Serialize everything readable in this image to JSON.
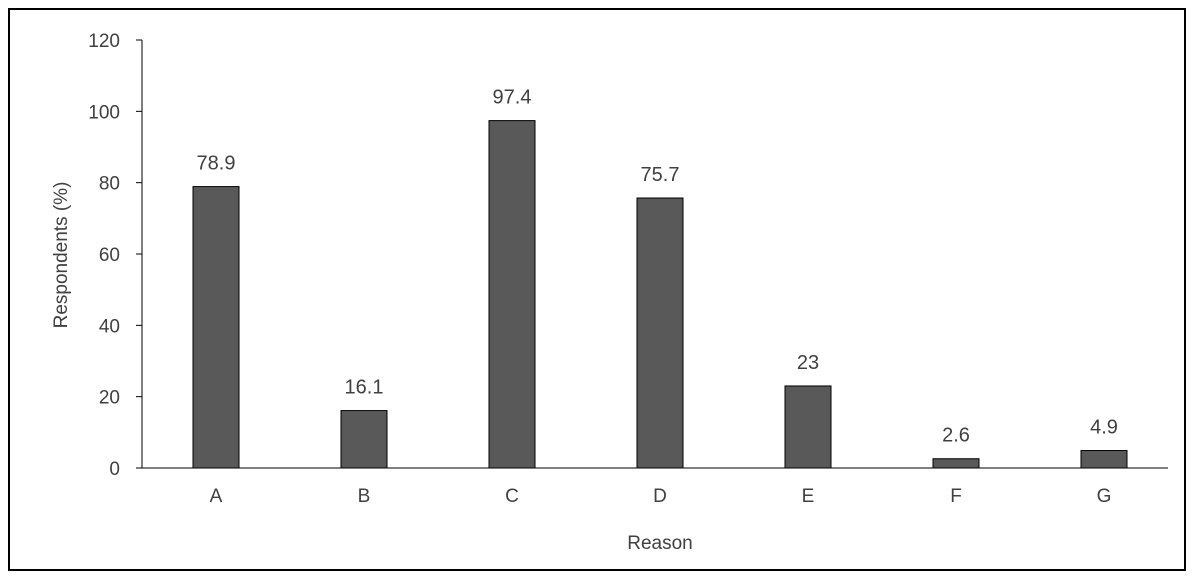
{
  "chart_data": {
    "type": "bar",
    "title": "",
    "xlabel": "Reason",
    "ylabel": "Respondents (%)",
    "ylim": [
      0,
      120
    ],
    "yticks": [
      0,
      20,
      40,
      60,
      80,
      100,
      120
    ],
    "categories": [
      "A",
      "B",
      "C",
      "D",
      "E",
      "F",
      "G"
    ],
    "values": [
      78.9,
      16.1,
      97.4,
      75.7,
      23,
      2.6,
      4.9
    ],
    "data_labels": [
      "78.9",
      "16.1",
      "97.4",
      "75.7",
      "23",
      "2.6",
      "4.9"
    ],
    "bar_color": "#595959",
    "bar_edge_color": "#000000",
    "grid": false,
    "legend": "none"
  }
}
